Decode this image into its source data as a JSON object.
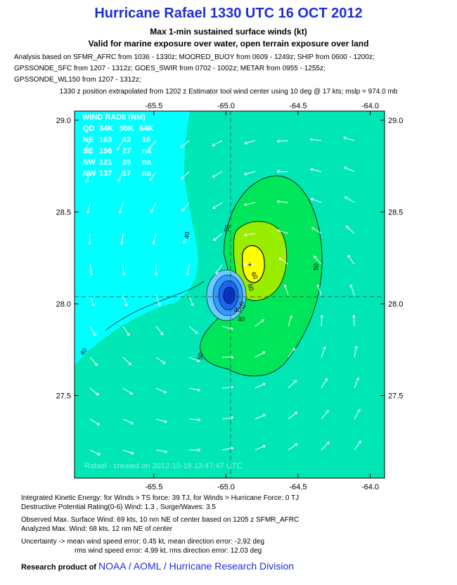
{
  "header": {
    "title": "Hurricane Rafael 1330 UTC 16 OCT 2012",
    "subtitle1": "Max 1-min sustained surface winds (kt)",
    "subtitle2": "Valid for marine exposure over water, open terrain exposure over land",
    "analysis_lines": [
      "Analysis based on SFMR_AFRC from 1036 - 1330z; MOORED_BUOY from 0609 - 1249z; SHIP from 0600 - 1200z;",
      "GPSSONDE_SFC from 1207 - 1312z; GOES_SWIR from 0702 - 1002z; METAR from 0955 - 1255z;",
      "GPSSONDE_WL150 from 1207 - 1312z;"
    ],
    "position_note": "1330 z position extrapolated from 1202 z Estimator tool wind center using 10 deg @ 17 kts; mslp = 974.0 mb"
  },
  "wind_radii": {
    "title": "WIND RADII (NM)",
    "header": [
      "QD",
      "34K",
      "50K",
      "64K"
    ],
    "rows": [
      [
        "NE",
        "163",
        "42",
        "16"
      ],
      [
        "SE",
        "156",
        "27",
        "na"
      ],
      [
        "SW",
        "121",
        "25",
        "na"
      ],
      [
        "NW",
        "137",
        "17",
        "na"
      ]
    ]
  },
  "watermark": "Rafael - created on 2012-10-16 13:47:47 UTC",
  "chart_data": {
    "type": "contour",
    "x_ticks": [
      "-65.5",
      "-65.0",
      "-64.5",
      "-64.0"
    ],
    "y_ticks": [
      "29.0",
      "28.5",
      "28.0",
      "27.5"
    ],
    "xlim": [
      -66.05,
      -63.9
    ],
    "ylim": [
      27.05,
      29.05
    ],
    "center": {
      "lon": -64.87,
      "lat": 28.05
    },
    "contour_labels": [
      "40",
      "50",
      "60",
      "40",
      "50",
      "40",
      "50",
      "50",
      "60",
      "40"
    ],
    "colors": {
      "below_40": "#00ffff",
      "40_50": "#00e6b4",
      "50_60": "#00e65a",
      "60_70": "#99ee00",
      "70_plus": "#ffff00",
      "calm_center": "#0033cc"
    }
  },
  "footer": {
    "ike": "Integrated Kinetic Energy: for Winds > TS force: 39 TJ, for Winds > Hurricane Force: 0 TJ",
    "dpr": "Destructive Potential Rating(0-6)  Wind: 1.3 , Surge/Waves: 3.5",
    "observed": "Observed Max. Surface Wind: 69 kts, 10 nm NE of center based on 1205 z SFMR_AFRC",
    "analyzed": "Analyzed Max. Wind: 68 kts, 12 nm  NE of center",
    "unc1": "Uncertainty -> mean wind speed error: 0.45 kt, mean direction error:  -2.92 deg",
    "unc2": "rms wind speed error: 4.99 kt, rms direction error: 12.03 deg",
    "credit_prefix": "Research product of",
    "credit_org": "NOAA / AOML / Hurricane Research Division"
  }
}
